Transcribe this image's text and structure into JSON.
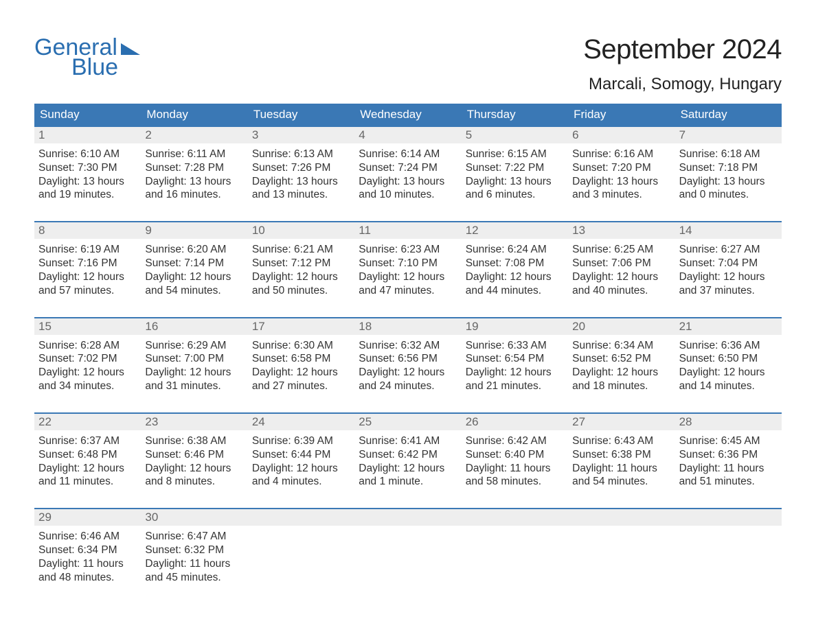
{
  "colors": {
    "brand_blue": "#2a6eb0",
    "header_bg": "#3a78b5",
    "header_text": "#ffffff",
    "daynum_bg": "#eeeeee",
    "daynum_text": "#666666",
    "body_text": "#333333",
    "page_bg": "#ffffff"
  },
  "typography": {
    "font_family": "Arial, Helvetica, sans-serif",
    "month_title_pt": 40,
    "location_pt": 24,
    "header_pt": 17,
    "daynum_pt": 17,
    "body_pt": 15.5,
    "logo_pt": 34
  },
  "logo": {
    "line1": "General",
    "line2": "Blue",
    "icon_name": "triangle-flag-icon"
  },
  "title": "September 2024",
  "location": "Marcali, Somogy, Hungary",
  "weekdays": [
    "Sunday",
    "Monday",
    "Tuesday",
    "Wednesday",
    "Thursday",
    "Friday",
    "Saturday"
  ],
  "weeks": [
    [
      {
        "n": "1",
        "sunrise": "Sunrise: 6:10 AM",
        "sunset": "Sunset: 7:30 PM",
        "day1": "Daylight: 13 hours",
        "day2": "and 19 minutes."
      },
      {
        "n": "2",
        "sunrise": "Sunrise: 6:11 AM",
        "sunset": "Sunset: 7:28 PM",
        "day1": "Daylight: 13 hours",
        "day2": "and 16 minutes."
      },
      {
        "n": "3",
        "sunrise": "Sunrise: 6:13 AM",
        "sunset": "Sunset: 7:26 PM",
        "day1": "Daylight: 13 hours",
        "day2": "and 13 minutes."
      },
      {
        "n": "4",
        "sunrise": "Sunrise: 6:14 AM",
        "sunset": "Sunset: 7:24 PM",
        "day1": "Daylight: 13 hours",
        "day2": "and 10 minutes."
      },
      {
        "n": "5",
        "sunrise": "Sunrise: 6:15 AM",
        "sunset": "Sunset: 7:22 PM",
        "day1": "Daylight: 13 hours",
        "day2": "and 6 minutes."
      },
      {
        "n": "6",
        "sunrise": "Sunrise: 6:16 AM",
        "sunset": "Sunset: 7:20 PM",
        "day1": "Daylight: 13 hours",
        "day2": "and 3 minutes."
      },
      {
        "n": "7",
        "sunrise": "Sunrise: 6:18 AM",
        "sunset": "Sunset: 7:18 PM",
        "day1": "Daylight: 13 hours",
        "day2": "and 0 minutes."
      }
    ],
    [
      {
        "n": "8",
        "sunrise": "Sunrise: 6:19 AM",
        "sunset": "Sunset: 7:16 PM",
        "day1": "Daylight: 12 hours",
        "day2": "and 57 minutes."
      },
      {
        "n": "9",
        "sunrise": "Sunrise: 6:20 AM",
        "sunset": "Sunset: 7:14 PM",
        "day1": "Daylight: 12 hours",
        "day2": "and 54 minutes."
      },
      {
        "n": "10",
        "sunrise": "Sunrise: 6:21 AM",
        "sunset": "Sunset: 7:12 PM",
        "day1": "Daylight: 12 hours",
        "day2": "and 50 minutes."
      },
      {
        "n": "11",
        "sunrise": "Sunrise: 6:23 AM",
        "sunset": "Sunset: 7:10 PM",
        "day1": "Daylight: 12 hours",
        "day2": "and 47 minutes."
      },
      {
        "n": "12",
        "sunrise": "Sunrise: 6:24 AM",
        "sunset": "Sunset: 7:08 PM",
        "day1": "Daylight: 12 hours",
        "day2": "and 44 minutes."
      },
      {
        "n": "13",
        "sunrise": "Sunrise: 6:25 AM",
        "sunset": "Sunset: 7:06 PM",
        "day1": "Daylight: 12 hours",
        "day2": "and 40 minutes."
      },
      {
        "n": "14",
        "sunrise": "Sunrise: 6:27 AM",
        "sunset": "Sunset: 7:04 PM",
        "day1": "Daylight: 12 hours",
        "day2": "and 37 minutes."
      }
    ],
    [
      {
        "n": "15",
        "sunrise": "Sunrise: 6:28 AM",
        "sunset": "Sunset: 7:02 PM",
        "day1": "Daylight: 12 hours",
        "day2": "and 34 minutes."
      },
      {
        "n": "16",
        "sunrise": "Sunrise: 6:29 AM",
        "sunset": "Sunset: 7:00 PM",
        "day1": "Daylight: 12 hours",
        "day2": "and 31 minutes."
      },
      {
        "n": "17",
        "sunrise": "Sunrise: 6:30 AM",
        "sunset": "Sunset: 6:58 PM",
        "day1": "Daylight: 12 hours",
        "day2": "and 27 minutes."
      },
      {
        "n": "18",
        "sunrise": "Sunrise: 6:32 AM",
        "sunset": "Sunset: 6:56 PM",
        "day1": "Daylight: 12 hours",
        "day2": "and 24 minutes."
      },
      {
        "n": "19",
        "sunrise": "Sunrise: 6:33 AM",
        "sunset": "Sunset: 6:54 PM",
        "day1": "Daylight: 12 hours",
        "day2": "and 21 minutes."
      },
      {
        "n": "20",
        "sunrise": "Sunrise: 6:34 AM",
        "sunset": "Sunset: 6:52 PM",
        "day1": "Daylight: 12 hours",
        "day2": "and 18 minutes."
      },
      {
        "n": "21",
        "sunrise": "Sunrise: 6:36 AM",
        "sunset": "Sunset: 6:50 PM",
        "day1": "Daylight: 12 hours",
        "day2": "and 14 minutes."
      }
    ],
    [
      {
        "n": "22",
        "sunrise": "Sunrise: 6:37 AM",
        "sunset": "Sunset: 6:48 PM",
        "day1": "Daylight: 12 hours",
        "day2": "and 11 minutes."
      },
      {
        "n": "23",
        "sunrise": "Sunrise: 6:38 AM",
        "sunset": "Sunset: 6:46 PM",
        "day1": "Daylight: 12 hours",
        "day2": "and 8 minutes."
      },
      {
        "n": "24",
        "sunrise": "Sunrise: 6:39 AM",
        "sunset": "Sunset: 6:44 PM",
        "day1": "Daylight: 12 hours",
        "day2": "and 4 minutes."
      },
      {
        "n": "25",
        "sunrise": "Sunrise: 6:41 AM",
        "sunset": "Sunset: 6:42 PM",
        "day1": "Daylight: 12 hours",
        "day2": "and 1 minute."
      },
      {
        "n": "26",
        "sunrise": "Sunrise: 6:42 AM",
        "sunset": "Sunset: 6:40 PM",
        "day1": "Daylight: 11 hours",
        "day2": "and 58 minutes."
      },
      {
        "n": "27",
        "sunrise": "Sunrise: 6:43 AM",
        "sunset": "Sunset: 6:38 PM",
        "day1": "Daylight: 11 hours",
        "day2": "and 54 minutes."
      },
      {
        "n": "28",
        "sunrise": "Sunrise: 6:45 AM",
        "sunset": "Sunset: 6:36 PM",
        "day1": "Daylight: 11 hours",
        "day2": "and 51 minutes."
      }
    ],
    [
      {
        "n": "29",
        "sunrise": "Sunrise: 6:46 AM",
        "sunset": "Sunset: 6:34 PM",
        "day1": "Daylight: 11 hours",
        "day2": "and 48 minutes."
      },
      {
        "n": "30",
        "sunrise": "Sunrise: 6:47 AM",
        "sunset": "Sunset: 6:32 PM",
        "day1": "Daylight: 11 hours",
        "day2": "and 45 minutes."
      },
      {
        "empty": true
      },
      {
        "empty": true
      },
      {
        "empty": true
      },
      {
        "empty": true
      },
      {
        "empty": true
      }
    ]
  ]
}
